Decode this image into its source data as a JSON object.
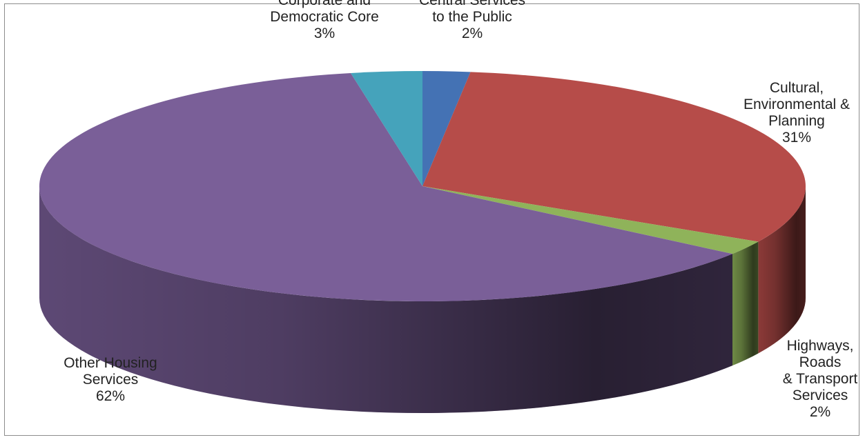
{
  "chart_data": {
    "type": "pie",
    "style": "3d",
    "title": "",
    "slices": [
      {
        "label": "Central Services to the Public",
        "label_lines": [
          "Central Services",
          "to the Public"
        ],
        "pct_label": "2%",
        "value": 2,
        "color": "#4472b4"
      },
      {
        "label": "Cultural, Environmental & Planning",
        "label_lines": [
          "Cultural,",
          "Environmental &",
          "Planning"
        ],
        "pct_label": "31%",
        "value": 31,
        "color": "#b64c49"
      },
      {
        "label": "Highways, Roads & Transport Services",
        "label_lines": [
          "Highways,",
          "Roads",
          "& Transport",
          "Services"
        ],
        "pct_label": "2%",
        "value": 2,
        "color": "#8fb35a"
      },
      {
        "label": "Other Housing Services",
        "label_lines": [
          "Other Housing",
          "Services"
        ],
        "pct_label": "62%",
        "value": 62,
        "color": "#7a5f98"
      },
      {
        "label": "Corporate and Democratic Core",
        "label_lines": [
          "Corporate and",
          "Democratic Core"
        ],
        "pct_label": "3%",
        "value": 3,
        "color": "#45a3bb"
      }
    ],
    "legend": "none"
  }
}
